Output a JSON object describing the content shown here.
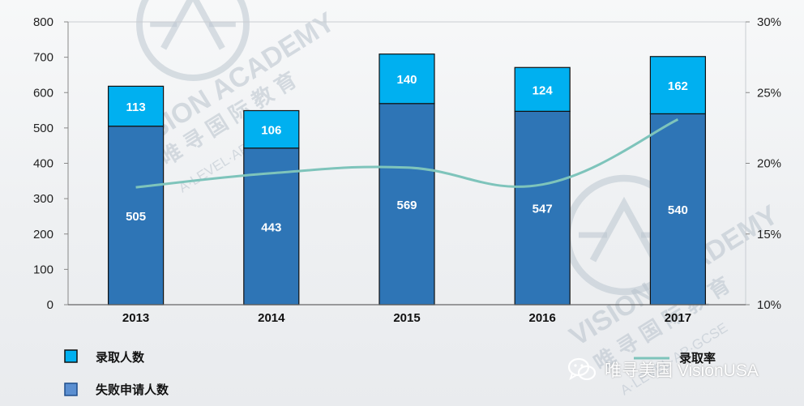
{
  "chart_data": {
    "type": "bar",
    "stacked": true,
    "categories": [
      "2013",
      "2014",
      "2015",
      "2016",
      "2017"
    ],
    "series": [
      {
        "name": "失败申请人数",
        "values": [
          505,
          443,
          569,
          547,
          540
        ],
        "color": "#2e75b6"
      },
      {
        "name": "录取人数",
        "values": [
          113,
          106,
          140,
          124,
          162
        ],
        "color": "#00b0f0"
      }
    ],
    "line_series": {
      "name": "录取率",
      "axis": "right",
      "color": "#7ec4bb",
      "values": [
        0.183,
        0.193,
        0.197,
        0.185,
        0.231
      ]
    },
    "ylim": [
      0,
      800
    ],
    "yticks": [
      "0",
      "100",
      "200",
      "300",
      "400",
      "500",
      "600",
      "700",
      "800"
    ],
    "y2lim": [
      0.1,
      0.3
    ],
    "y2ticks": [
      "10%",
      "15%",
      "20%",
      "25%",
      "30%"
    ],
    "grid": false,
    "legend_position": "bottom"
  },
  "watermark": {
    "brand": "VISION ACADEMY",
    "chinese": "唯 寻 国 际 教 育",
    "subjects": "A·LEVEL·AP·GCSE"
  },
  "footer": {
    "text": "唯寻美国 VisionUSA"
  }
}
